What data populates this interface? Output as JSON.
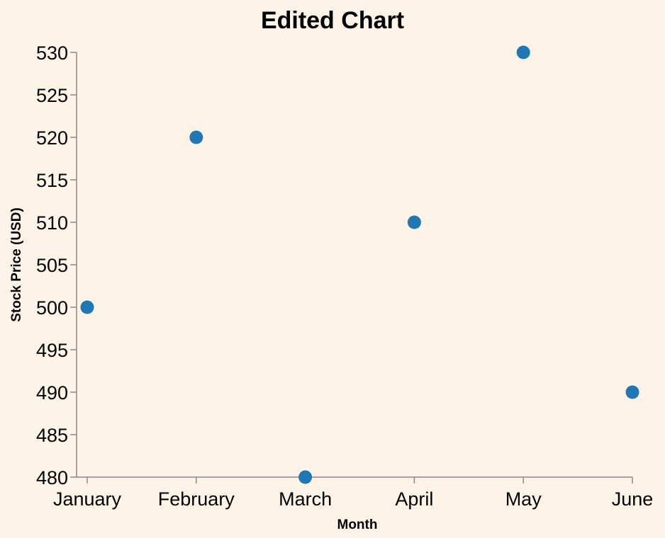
{
  "chart_data": {
    "type": "scatter",
    "title": "Edited Chart",
    "xlabel": "Month",
    "ylabel": "Stock Price (USD)",
    "categories": [
      "January",
      "February",
      "March",
      "April",
      "May",
      "June"
    ],
    "values": [
      500,
      520,
      480,
      510,
      530,
      490
    ],
    "ylim": [
      480,
      530
    ],
    "yticks": [
      480,
      485,
      490,
      495,
      500,
      505,
      510,
      515,
      520,
      525,
      530
    ],
    "grid": false,
    "point_color": "#1f77b4",
    "background": "#fdf3e7",
    "axis_color": "#888888"
  }
}
